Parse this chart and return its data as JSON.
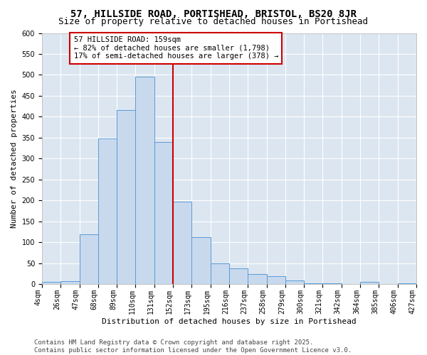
{
  "title_line1": "57, HILLSIDE ROAD, PORTISHEAD, BRISTOL, BS20 8JR",
  "title_line2": "Size of property relative to detached houses in Portishead",
  "xlabel": "Distribution of detached houses by size in Portishead",
  "ylabel": "Number of detached properties",
  "categories": [
    "4sqm",
    "26sqm",
    "47sqm",
    "68sqm",
    "89sqm",
    "110sqm",
    "131sqm",
    "152sqm",
    "173sqm",
    "195sqm",
    "216sqm",
    "237sqm",
    "258sqm",
    "279sqm",
    "300sqm",
    "321sqm",
    "342sqm",
    "364sqm",
    "385sqm",
    "406sqm",
    "427sqm"
  ],
  "values": [
    5,
    7,
    120,
    348,
    416,
    495,
    340,
    197,
    113,
    50,
    38,
    24,
    20,
    9,
    3,
    2,
    1,
    5,
    1,
    2
  ],
  "bar_color": "#c8d9ee",
  "bar_edge_color": "#5b9bd5",
  "vline_color": "#cc0000",
  "annotation_text": "57 HILLSIDE ROAD: 159sqm\n← 82% of detached houses are smaller (1,798)\n17% of semi-detached houses are larger (378) →",
  "annotation_box_color": "#ffffff",
  "annotation_box_edge_color": "#cc0000",
  "ylim": [
    0,
    600
  ],
  "yticks": [
    0,
    50,
    100,
    150,
    200,
    250,
    300,
    350,
    400,
    450,
    500,
    550,
    600
  ],
  "background_color": "#dce6f1",
  "footer_text": "Contains HM Land Registry data © Crown copyright and database right 2025.\nContains public sector information licensed under the Open Government Licence v3.0.",
  "title_fontsize": 10,
  "subtitle_fontsize": 9,
  "axis_label_fontsize": 8,
  "tick_fontsize": 7,
  "annotation_fontsize": 7.5,
  "footer_fontsize": 6.5
}
